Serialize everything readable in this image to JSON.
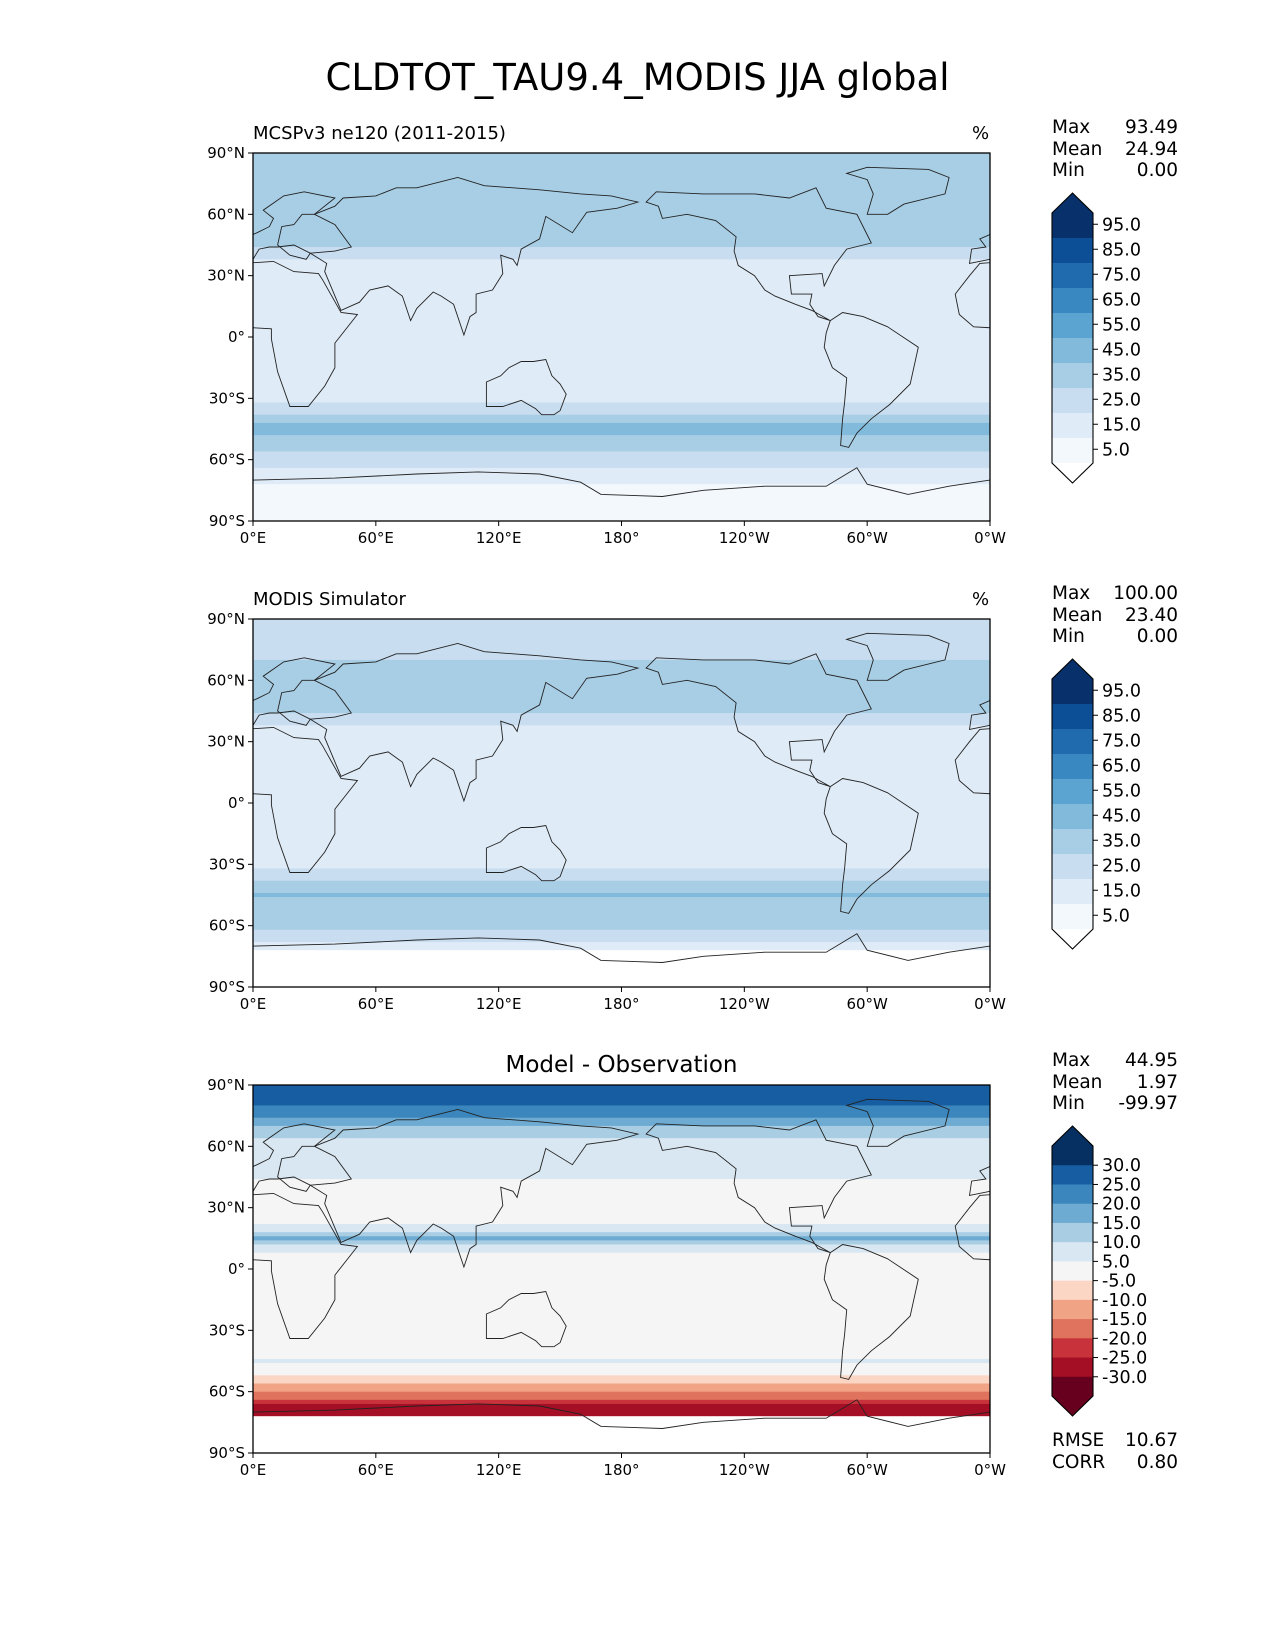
{
  "figure": {
    "title": "CLDTOT_TAU9.4_MODIS JJA global"
  },
  "axes": {
    "lat_ticks": [
      "90°N",
      "60°N",
      "30°N",
      "0°",
      "30°S",
      "60°S",
      "90°S"
    ],
    "lon_ticks": [
      "0°E",
      "60°E",
      "120°E",
      "180°",
      "120°W",
      "60°W",
      "0°W"
    ]
  },
  "panels": [
    {
      "left_title": "MCSPv3 ne120 (2011-2015)",
      "units": "%",
      "stats": [
        {
          "label": "Max",
          "value": "93.49"
        },
        {
          "label": "Mean",
          "value": "24.94"
        },
        {
          "label": "Min",
          "value": "0.00"
        }
      ],
      "colorbar_ticks": [
        "95.0",
        "85.0",
        "75.0",
        "65.0",
        "55.0",
        "45.0",
        "35.0",
        "25.0",
        "15.0",
        "5.0"
      ]
    },
    {
      "left_title": "MODIS Simulator",
      "units": "%",
      "stats": [
        {
          "label": "Max",
          "value": "100.00"
        },
        {
          "label": "Mean",
          "value": "23.40"
        },
        {
          "label": "Min",
          "value": "0.00"
        }
      ],
      "colorbar_ticks": [
        "95.0",
        "85.0",
        "75.0",
        "65.0",
        "55.0",
        "45.0",
        "35.0",
        "25.0",
        "15.0",
        "5.0"
      ]
    },
    {
      "center_title": "Model - Observation",
      "stats": [
        {
          "label": "Max",
          "value": "44.95"
        },
        {
          "label": "Mean",
          "value": "1.97"
        },
        {
          "label": "Min",
          "value": "-99.97"
        }
      ],
      "colorbar_ticks": [
        "30.0",
        "25.0",
        "20.0",
        "15.0",
        "10.0",
        "5.0",
        "-5.0",
        "-10.0",
        "-15.0",
        "-20.0",
        "-25.0",
        "-30.0"
      ],
      "footer_stats": [
        {
          "label": "RMSE",
          "value": "10.67"
        },
        {
          "label": "CORR",
          "value": "0.80"
        }
      ]
    }
  ],
  "chart_data": [
    {
      "type": "heatmap",
      "title": "MCSPv3 ne120 (2011-2015)",
      "units": "%",
      "xlim": [
        0,
        360
      ],
      "ylim": [
        -90,
        90
      ],
      "colorscale": "Blues",
      "levels": [
        0,
        5,
        15,
        25,
        35,
        45,
        55,
        65,
        75,
        85,
        95,
        100
      ],
      "stats": {
        "max": 93.49,
        "mean": 24.94,
        "min": 0.0
      },
      "zonal_profile": {
        "lat": [
          -80,
          -60,
          -45,
          -30,
          -15,
          0,
          15,
          30,
          45,
          60,
          80
        ],
        "value": [
          5,
          30,
          50,
          20,
          15,
          20,
          20,
          15,
          35,
          45,
          40
        ]
      }
    },
    {
      "type": "heatmap",
      "title": "MODIS Simulator",
      "units": "%",
      "xlim": [
        0,
        360
      ],
      "ylim": [
        -90,
        90
      ],
      "colorscale": "Blues",
      "levels": [
        0,
        5,
        15,
        25,
        35,
        45,
        55,
        65,
        75,
        85,
        95,
        100
      ],
      "stats": {
        "max": 100.0,
        "mean": 23.4,
        "min": 0.0
      },
      "zonal_profile": {
        "lat": [
          -80,
          -60,
          -45,
          -30,
          -15,
          0,
          15,
          30,
          45,
          60,
          80
        ],
        "value": [
          0,
          40,
          45,
          20,
          15,
          20,
          20,
          15,
          35,
          40,
          30
        ]
      }
    },
    {
      "type": "heatmap",
      "title": "Model - Observation",
      "xlim": [
        0,
        360
      ],
      "ylim": [
        -90,
        90
      ],
      "colorscale": "RdBu",
      "levels": [
        -35,
        -30,
        -25,
        -20,
        -15,
        -10,
        -5,
        5,
        10,
        15,
        20,
        25,
        30,
        35
      ],
      "stats": {
        "max": 44.95,
        "mean": 1.97,
        "min": -99.97,
        "rmse": 10.67,
        "corr": 0.8
      },
      "zonal_profile": {
        "lat": [
          -70,
          -60,
          -45,
          -30,
          -15,
          0,
          15,
          30,
          45,
          60,
          80
        ],
        "value": [
          -30,
          -15,
          5,
          0,
          0,
          -5,
          15,
          -5,
          5,
          5,
          25
        ]
      }
    }
  ]
}
